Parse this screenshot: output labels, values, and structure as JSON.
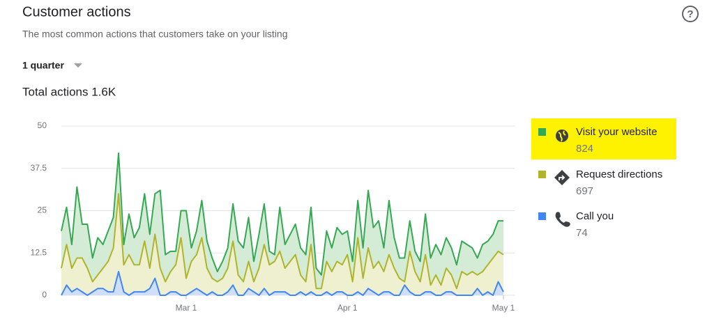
{
  "chart_data": {
    "type": "area",
    "stacked": true,
    "title": "Customer actions",
    "subtitle": "The most common actions that customers take on your listing",
    "period": "1 quarter",
    "total_label": "Total actions 1.6K",
    "categories": [
      null,
      null,
      null,
      null,
      null,
      null,
      null,
      null,
      null,
      null,
      null,
      null,
      null,
      null,
      null,
      null,
      null,
      null,
      null,
      null,
      null,
      null,
      null,
      null,
      "Mar 1",
      null,
      null,
      null,
      null,
      null,
      null,
      null,
      null,
      null,
      null,
      null,
      null,
      null,
      null,
      null,
      null,
      null,
      null,
      null,
      null,
      null,
      null,
      null,
      null,
      null,
      null,
      null,
      null,
      null,
      null,
      "Apr 1",
      null,
      null,
      null,
      null,
      null,
      null,
      null,
      null,
      null,
      null,
      null,
      null,
      null,
      null,
      null,
      null,
      null,
      null,
      null,
      null,
      null,
      null,
      null,
      null,
      null,
      null,
      null,
      null,
      null,
      "May 1"
    ],
    "ylim": [
      0,
      50
    ],
    "yticks": [
      0,
      12.5,
      25,
      37.5,
      50
    ],
    "grid": true,
    "series": [
      {
        "name": "Visit your website",
        "total": 824,
        "color": "#34a853",
        "fill": "#d4ecd6",
        "values": [
          11,
          11,
          7,
          21,
          10,
          13,
          7,
          11,
          7,
          9,
          9,
          12,
          6,
          12,
          8,
          11,
          14,
          10,
          12,
          23,
          8,
          6,
          4,
          8,
          20,
          4,
          7,
          11,
          8,
          6,
          3,
          5,
          6,
          11,
          10,
          10,
          13,
          6,
          10,
          12,
          4,
          2,
          13,
          7,
          8,
          9,
          8,
          8,
          11,
          6,
          4,
          9,
          7,
          10,
          9,
          7,
          6,
          11,
          9,
          17,
          12,
          12,
          7,
          16,
          9,
          6,
          7,
          9,
          6,
          6,
          12,
          8,
          9,
          9,
          9,
          8,
          7,
          9,
          9,
          7,
          5,
          8,
          7,
          7,
          9,
          10
        ]
      },
      {
        "name": "Request directions",
        "total": 697,
        "color": "#afb42b",
        "fill": "#eef0cf",
        "values": [
          8,
          12,
          7,
          9,
          10,
          8,
          3,
          4,
          6,
          9,
          13,
          23,
          8,
          12,
          8,
          8,
          15,
          6,
          13,
          8,
          4,
          6,
          8,
          17,
          5,
          9,
          10,
          16,
          8,
          4,
          4,
          5,
          7,
          13,
          6,
          4,
          8,
          3,
          8,
          13,
          9,
          9,
          12,
          7,
          10,
          12,
          5,
          4,
          14,
          2,
          2,
          9,
          7,
          9,
          8,
          12,
          4,
          16,
          5,
          12,
          7,
          10,
          6,
          11,
          8,
          5,
          1,
          12,
          7,
          4,
          11,
          2,
          6,
          3,
          7,
          5,
          2,
          7,
          6,
          7,
          4,
          7,
          8,
          11,
          9,
          11
        ]
      },
      {
        "name": "Call you",
        "total": 74,
        "color": "#4285f4",
        "fill": "#cfdffb",
        "values": [
          0,
          3,
          1,
          2,
          1,
          0,
          1,
          2,
          2,
          1,
          1,
          7,
          1,
          0,
          1,
          1,
          1,
          2,
          5,
          0,
          0,
          1,
          1,
          0,
          0,
          1,
          2,
          1,
          0,
          1,
          0,
          0,
          1,
          3,
          0,
          0,
          2,
          1,
          0,
          2,
          0,
          1,
          1,
          1,
          0,
          0,
          1,
          0,
          1,
          0,
          0,
          1,
          0,
          1,
          1,
          0,
          0,
          1,
          0,
          2,
          1,
          0,
          1,
          1,
          0,
          0,
          3,
          1,
          0,
          0,
          1,
          1,
          0,
          0,
          1,
          1,
          0,
          0,
          0,
          0,
          2,
          0,
          1,
          0,
          4,
          1
        ]
      }
    ]
  }
}
